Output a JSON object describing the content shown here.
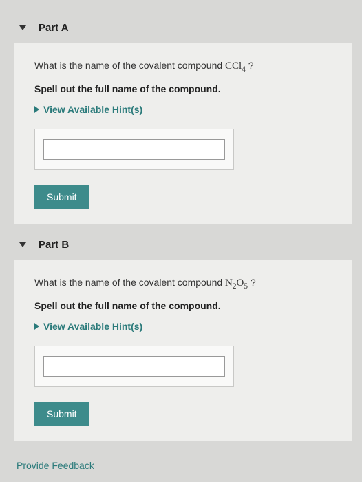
{
  "parts": [
    {
      "title": "Part A",
      "question_prefix": "What is the name of the covalent compound ",
      "compound_html": "CCl<sub>4</sub>",
      "question_suffix": " ?",
      "instruction": "Spell out the full name of the compound.",
      "hint_label": "View Available Hint(s)",
      "submit_label": "Submit",
      "answer_value": ""
    },
    {
      "title": "Part B",
      "question_prefix": "What is the name of the covalent compound ",
      "compound_html": "N<sub>2</sub>O<sub>5</sub>",
      "question_suffix": " ?",
      "instruction": "Spell out the full name of the compound.",
      "hint_label": "View Available Hint(s)",
      "submit_label": "Submit",
      "answer_value": ""
    }
  ],
  "feedback_label": "Provide Feedback",
  "colors": {
    "page_bg": "#d8d8d6",
    "body_bg": "#eeeeec",
    "accent": "#2a7a7a",
    "button_bg": "#3d8b8b",
    "text": "#333333"
  }
}
